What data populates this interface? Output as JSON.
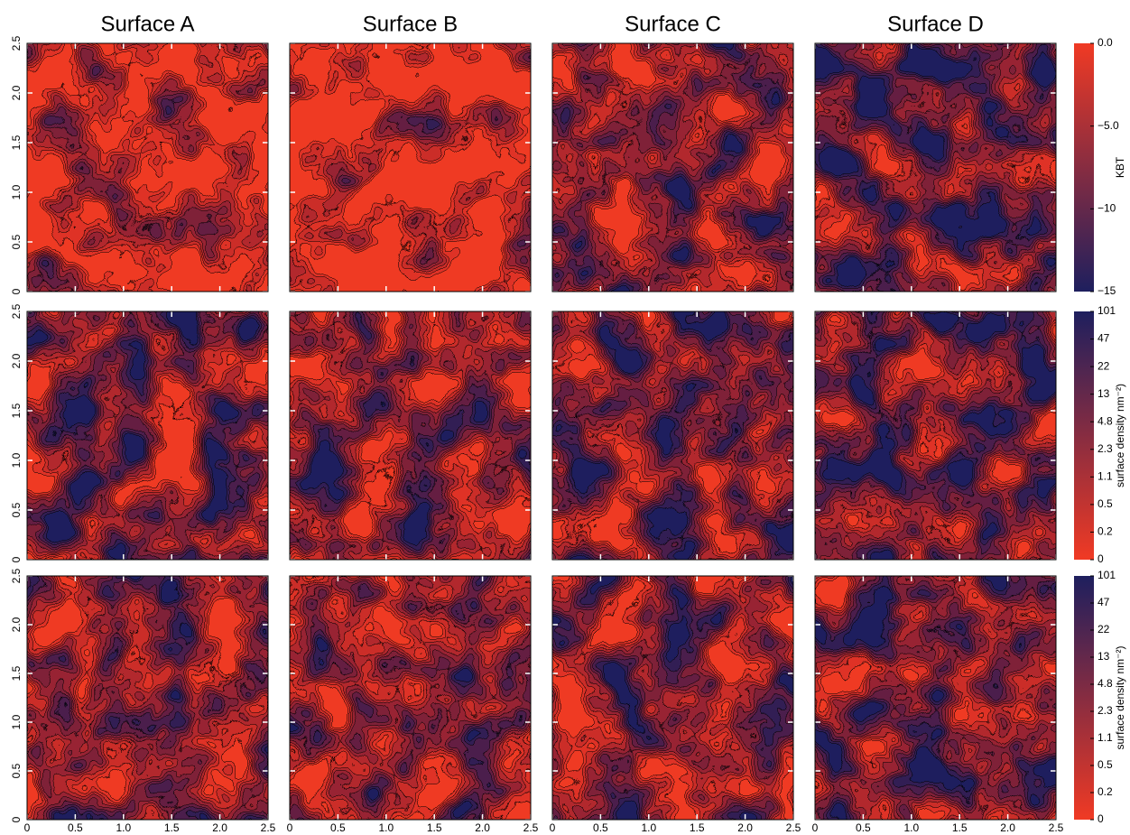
{
  "chart_data": [
    {
      "type": "contour",
      "title": "Surface A",
      "xlim": [
        0,
        2.5
      ],
      "ylim": [
        0,
        2.5
      ],
      "xticks": [
        0,
        0.5,
        {
          "value": 1,
          "label": "1.0"
        },
        1.5,
        {
          "value": 2,
          "label": "2.0"
        },
        2.5
      ],
      "yticks": [
        0,
        0.5,
        {
          "value": 1,
          "label": "1.0"
        },
        1.5,
        {
          "value": 2,
          "label": "2.0"
        },
        2.5
      ],
      "x_tick_labels": false,
      "y_tick_labels": true
    },
    {
      "type": "contour",
      "title": "Surface B",
      "xlim": [
        0,
        2.5
      ],
      "ylim": [
        0,
        2.5
      ],
      "xticks": [
        0,
        0.5,
        {
          "value": 1,
          "label": "1.0"
        },
        1.5,
        {
          "value": 2,
          "label": "2.0"
        },
        2.5
      ],
      "yticks": [
        0,
        0.5,
        {
          "value": 1,
          "label": "1.0"
        },
        1.5,
        {
          "value": 2,
          "label": "2.0"
        },
        2.5
      ],
      "x_tick_labels": false,
      "y_tick_labels": false
    },
    {
      "type": "contour",
      "title": "Surface C",
      "xlim": [
        0,
        2.5
      ],
      "ylim": [
        0,
        2.5
      ],
      "xticks": [
        0,
        0.5,
        {
          "value": 1,
          "label": "1.0"
        },
        1.5,
        {
          "value": 2,
          "label": "2.0"
        },
        2.5
      ],
      "yticks": [
        0,
        0.5,
        {
          "value": 1,
          "label": "1.0"
        },
        1.5,
        {
          "value": 2,
          "label": "2.0"
        },
        2.5
      ],
      "x_tick_labels": false,
      "y_tick_labels": false
    },
    {
      "type": "contour",
      "title": "Surface D",
      "xlim": [
        0,
        2.5
      ],
      "ylim": [
        0,
        2.5
      ],
      "xticks": [
        0,
        0.5,
        {
          "value": 1,
          "label": "1.0"
        },
        1.5,
        {
          "value": 2,
          "label": "2.0"
        },
        2.5
      ],
      "yticks": [
        0,
        0.5,
        {
          "value": 1,
          "label": "1.0"
        },
        1.5,
        {
          "value": 2,
          "label": "2.0"
        },
        2.5
      ],
      "x_tick_labels": false,
      "y_tick_labels": false
    },
    {
      "type": "contour",
      "xlim": [
        0,
        2.5
      ],
      "ylim": [
        0,
        2.5
      ],
      "xticks": [
        0,
        0.5,
        {
          "value": 1,
          "label": "1.0"
        },
        1.5,
        {
          "value": 2,
          "label": "2.0"
        },
        2.5
      ],
      "yticks": [
        0,
        0.5,
        {
          "value": 1,
          "label": "1.0"
        },
        1.5,
        {
          "value": 2,
          "label": "2.0"
        },
        2.5
      ],
      "x_tick_labels": false,
      "y_tick_labels": true
    },
    {
      "type": "contour",
      "xlim": [
        0,
        2.5
      ],
      "ylim": [
        0,
        2.5
      ],
      "xticks": [
        0,
        0.5,
        {
          "value": 1,
          "label": "1.0"
        },
        1.5,
        {
          "value": 2,
          "label": "2.0"
        },
        2.5
      ],
      "yticks": [
        0,
        0.5,
        {
          "value": 1,
          "label": "1.0"
        },
        1.5,
        {
          "value": 2,
          "label": "2.0"
        },
        2.5
      ],
      "x_tick_labels": false,
      "y_tick_labels": false
    },
    {
      "type": "contour",
      "xlim": [
        0,
        2.5
      ],
      "ylim": [
        0,
        2.5
      ],
      "xticks": [
        0,
        0.5,
        {
          "value": 1,
          "label": "1.0"
        },
        1.5,
        {
          "value": 2,
          "label": "2.0"
        },
        2.5
      ],
      "yticks": [
        0,
        0.5,
        {
          "value": 1,
          "label": "1.0"
        },
        1.5,
        {
          "value": 2,
          "label": "2.0"
        },
        2.5
      ],
      "x_tick_labels": false,
      "y_tick_labels": false
    },
    {
      "type": "contour",
      "xlim": [
        0,
        2.5
      ],
      "ylim": [
        0,
        2.5
      ],
      "xticks": [
        0,
        0.5,
        {
          "value": 1,
          "label": "1.0"
        },
        1.5,
        {
          "value": 2,
          "label": "2.0"
        },
        2.5
      ],
      "yticks": [
        0,
        0.5,
        {
          "value": 1,
          "label": "1.0"
        },
        1.5,
        {
          "value": 2,
          "label": "2.0"
        },
        2.5
      ],
      "x_tick_labels": false,
      "y_tick_labels": false
    },
    {
      "type": "contour",
      "xlim": [
        0,
        2.5
      ],
      "ylim": [
        0,
        2.5
      ],
      "xticks": [
        0,
        0.5,
        {
          "value": 1,
          "label": "1.0"
        },
        1.5,
        {
          "value": 2,
          "label": "2.0"
        },
        2.5
      ],
      "yticks": [
        0,
        0.5,
        {
          "value": 1,
          "label": "1.0"
        },
        1.5,
        {
          "value": 2,
          "label": "2.0"
        },
        2.5
      ],
      "x_tick_labels": true,
      "y_tick_labels": true
    },
    {
      "type": "contour",
      "xlim": [
        0,
        2.5
      ],
      "ylim": [
        0,
        2.5
      ],
      "xticks": [
        0,
        0.5,
        {
          "value": 1,
          "label": "1.0"
        },
        1.5,
        {
          "value": 2,
          "label": "2.0"
        },
        2.5
      ],
      "yticks": [
        0,
        0.5,
        {
          "value": 1,
          "label": "1.0"
        },
        1.5,
        {
          "value": 2,
          "label": "2.0"
        },
        2.5
      ],
      "x_tick_labels": true,
      "y_tick_labels": false
    },
    {
      "type": "contour",
      "xlim": [
        0,
        2.5
      ],
      "ylim": [
        0,
        2.5
      ],
      "xticks": [
        0,
        0.5,
        {
          "value": 1,
          "label": "1.0"
        },
        1.5,
        {
          "value": 2,
          "label": "2.0"
        },
        2.5
      ],
      "yticks": [
        0,
        0.5,
        {
          "value": 1,
          "label": "1.0"
        },
        1.5,
        {
          "value": 2,
          "label": "2.0"
        },
        2.5
      ],
      "x_tick_labels": true,
      "y_tick_labels": false
    },
    {
      "type": "contour",
      "xlim": [
        0,
        2.5
      ],
      "ylim": [
        0,
        2.5
      ],
      "xticks": [
        0,
        0.5,
        {
          "value": 1,
          "label": "1.0"
        },
        1.5,
        {
          "value": 2,
          "label": "2.0"
        },
        2.5
      ],
      "yticks": [
        0,
        0.5,
        {
          "value": 1,
          "label": "1.0"
        },
        1.5,
        {
          "value": 2,
          "label": "2.0"
        },
        2.5
      ],
      "x_tick_labels": true,
      "y_tick_labels": false
    },
    {
      "type": "colorbar",
      "label": "KBT",
      "ylim": [
        -15,
        0
      ],
      "yticks": [
        {
          "value": 0,
          "label": "0.0"
        },
        {
          "value": -5,
          "label": "−5.0"
        },
        {
          "value": -10,
          "label": "−10"
        },
        {
          "value": -15,
          "label": "−15"
        }
      ],
      "colors": [
        "#1e1f5e",
        "#f03a24"
      ]
    },
    {
      "type": "colorbar",
      "scale": "levels",
      "label": "surface density nm⁻²)",
      "yticks": [
        0,
        0.2,
        0.5,
        1.1,
        2.3,
        4.8,
        13,
        22,
        47,
        101
      ],
      "colors": [
        "#f03a24",
        "#1e1f5e"
      ]
    },
    {
      "type": "colorbar",
      "scale": "levels",
      "label": "surface density nm⁻²)",
      "yticks": [
        0,
        0.2,
        0.5,
        1.1,
        2.3,
        4.8,
        13,
        22,
        47,
        101
      ],
      "colors": [
        "#f03a24",
        "#1e1f5e"
      ]
    }
  ]
}
